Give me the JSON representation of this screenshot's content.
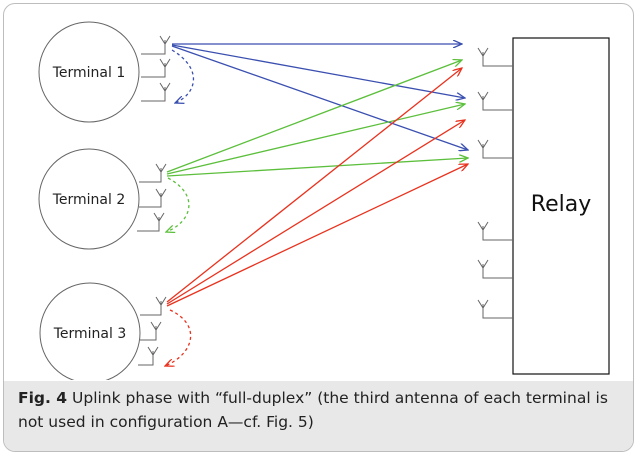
{
  "terminals": [
    {
      "label": "Terminal 1"
    },
    {
      "label": "Terminal 2"
    },
    {
      "label": "Terminal 3"
    }
  ],
  "relay": {
    "label": "Relay"
  },
  "colors": {
    "terminal1": "#3a4fb0",
    "terminal2": "#5cbf3c",
    "terminal3": "#e8321e",
    "outline": "#666666"
  },
  "caption": {
    "fig_label": "Fig. 4",
    "text": " Uplink phase with “full-duplex” (the third antenna of each terminal is not used in configuration A—cf. Fig. 5)"
  }
}
